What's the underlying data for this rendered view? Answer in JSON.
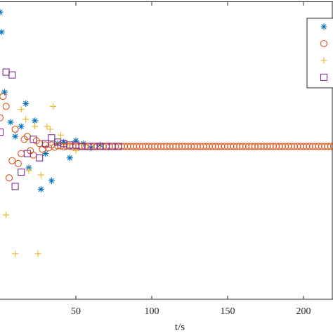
{
  "chart_data": {
    "type": "scatter",
    "title": "",
    "xlabel": "t/s",
    "ylabel": "",
    "xlim": [
      -5,
      225
    ],
    "ylim": [
      -1.05,
      1.0
    ],
    "xticks": [
      50,
      100,
      150,
      200
    ],
    "xtick_labels": [
      "50",
      "100",
      "150",
      "200"
    ],
    "grid": false,
    "legend": {
      "position": "top-right"
    },
    "series": [
      {
        "marker": "asterisk",
        "color": "#0072bd",
        "x": [
          0,
          1,
          3,
          7,
          10,
          14,
          17,
          19,
          23,
          27,
          30,
          34,
          38,
          42,
          46,
          50,
          55,
          60,
          66
        ],
        "y": [
          0.94,
          0.8,
          0.38,
          0.17,
          0.07,
          0.14,
          0.3,
          -0.15,
          0.18,
          -0.3,
          -0.05,
          -0.24,
          0.02,
          0.03,
          -0.08,
          0.04,
          0.02,
          -0.01,
          0.01
        ]
      },
      {
        "marker": "circle",
        "color": "#d95319",
        "x": [
          0,
          2,
          4,
          6,
          8,
          10,
          12,
          14,
          16,
          18,
          20,
          22,
          24,
          26,
          28,
          30,
          32,
          34,
          36,
          38,
          40,
          42,
          44,
          46,
          48,
          50,
          52,
          54,
          56,
          58,
          60,
          62,
          64,
          66,
          68,
          70,
          72,
          74,
          76,
          78,
          80,
          82,
          84,
          86,
          88,
          90,
          92,
          94,
          96,
          98,
          100,
          102,
          104,
          106,
          108,
          110,
          112,
          114,
          116,
          118,
          120,
          122,
          124,
          126,
          128,
          130,
          132,
          134,
          136,
          138,
          140,
          142,
          144,
          146,
          148,
          150,
          152,
          154,
          156,
          158,
          160,
          162,
          164,
          166,
          168,
          170,
          172,
          174,
          176,
          178,
          180,
          182,
          184,
          186,
          188,
          190,
          192,
          194,
          196,
          198,
          200,
          202,
          204,
          206,
          208,
          210,
          212,
          214,
          216,
          218,
          220,
          222,
          224
        ],
        "y": [
          0.2,
          0.35,
          0.28,
          -0.22,
          -0.1,
          0.12,
          -0.12,
          -0.05,
          0.05,
          0.07,
          -0.03,
          -0.06,
          0.04,
          0.02,
          -0.02,
          0.01,
          -0.01,
          0.01,
          -0.005,
          0.004,
          0.003,
          -0.002,
          0.002,
          0.001,
          -0.001,
          0.001,
          0,
          0.001,
          0,
          0,
          0,
          0,
          0,
          0,
          0,
          0,
          0,
          0,
          0,
          0,
          0,
          0,
          0,
          0,
          0,
          0,
          0,
          0,
          0,
          0,
          0,
          0,
          0,
          0,
          0,
          0,
          0,
          0,
          0,
          0,
          0,
          0,
          0,
          0,
          0,
          0,
          0,
          0,
          0,
          0,
          0,
          0,
          0,
          0,
          0,
          0,
          0,
          0,
          0,
          0,
          0,
          0,
          0,
          0,
          0,
          0,
          0,
          0,
          0,
          0,
          0,
          0,
          0,
          0,
          0,
          0,
          0,
          0,
          0,
          0,
          0,
          0,
          0,
          0,
          0,
          0,
          0,
          0,
          0,
          0,
          0,
          0,
          0
        ]
      },
      {
        "marker": "plus",
        "color": "#edb120",
        "x": [
          4,
          10,
          14,
          17,
          19,
          23,
          25,
          27,
          31,
          33,
          35,
          40,
          44,
          50,
          56
        ],
        "y": [
          -0.48,
          -0.75,
          0.26,
          0.19,
          -0.17,
          0.14,
          -0.75,
          -0.2,
          0.14,
          0.12,
          0.28,
          0.08,
          0.01,
          -0.03,
          0.01
        ]
      },
      {
        "marker": "square",
        "color": "#7e2f8e",
        "x": [
          0,
          4,
          8,
          10,
          14,
          18,
          22,
          26,
          30,
          34,
          38,
          42,
          46,
          50,
          54,
          58,
          62,
          66,
          70,
          74,
          78
        ],
        "y": [
          0.1,
          0.52,
          0.5,
          -0.28,
          -0.18,
          -0.05,
          0.05,
          -0.08,
          0.02,
          0.06,
          0.03,
          0.02,
          0.01,
          0.01,
          0,
          0,
          0,
          0,
          0,
          0,
          0
        ]
      }
    ]
  }
}
